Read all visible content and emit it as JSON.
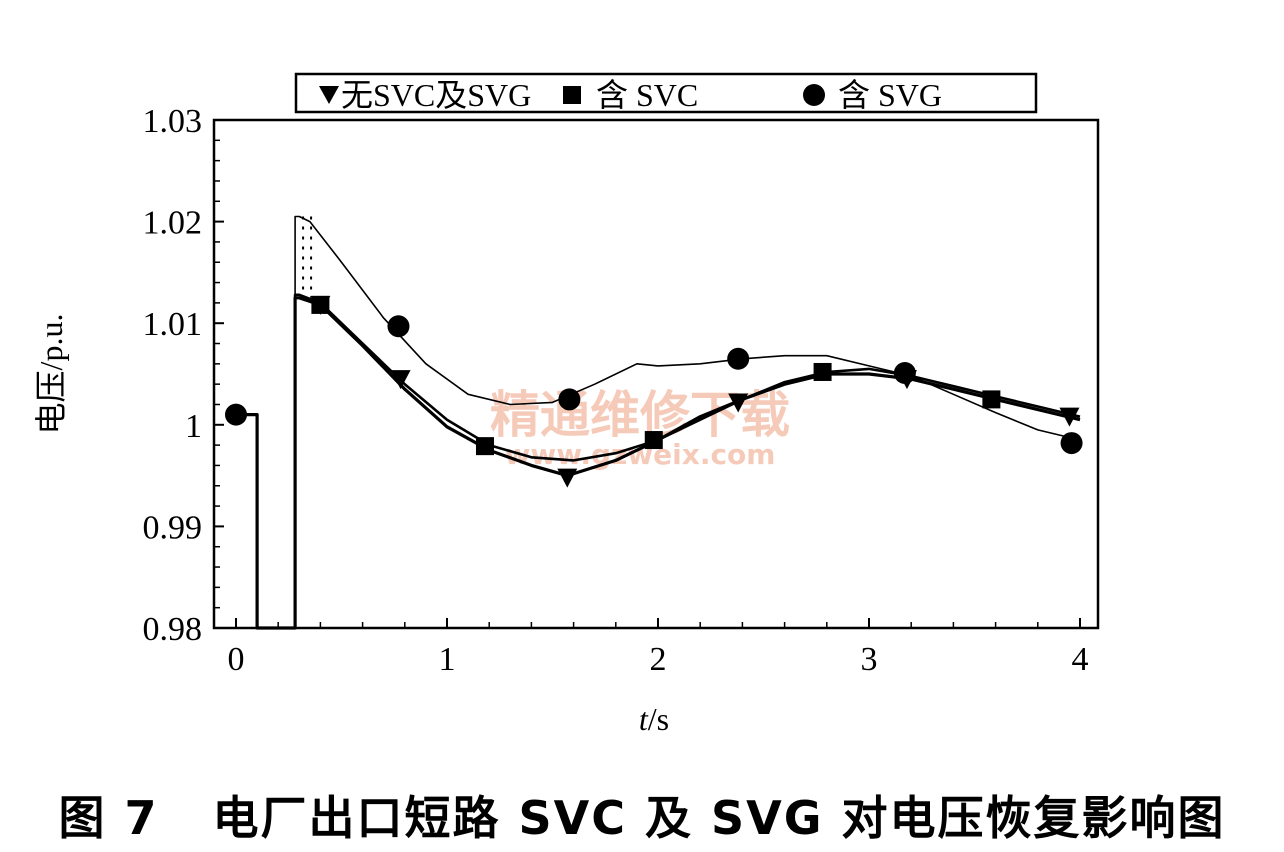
{
  "caption": "图 7   电厂出口短路 SVC 及 SVG 对电压恢复影响图",
  "watermark": {
    "text": "精通维修下载",
    "url": "www.gzweix.com"
  },
  "chart_data": {
    "type": "line",
    "xlabel_italic": "t",
    "xlabel_unit": "/s",
    "ylabel": "电压/p.u.",
    "xlim": [
      0,
      4
    ],
    "ylim": [
      0.98,
      1.03
    ],
    "xticks": [
      "0",
      "1",
      "2",
      "3",
      "4"
    ],
    "yticks": [
      "0.98",
      "0.99",
      "1",
      "1.01",
      "1.02",
      "1.03"
    ],
    "legend_position": "top",
    "series": [
      {
        "name": "无SVC及SVG",
        "marker": "triangle-down",
        "x": [
          0,
          0.1,
          0.1,
          0.28,
          0.28,
          0.3,
          0.4,
          0.6,
          0.8,
          1.0,
          1.2,
          1.4,
          1.57,
          1.8,
          2.0,
          2.2,
          2.4,
          2.6,
          2.8,
          3.0,
          3.2,
          3.4,
          3.6,
          3.8,
          4.0
        ],
        "y": [
          1.001,
          1.001,
          0.98,
          0.98,
          1.0125,
          1.0125,
          1.0118,
          1.0078,
          1.0035,
          0.9998,
          0.9975,
          0.996,
          0.995,
          0.9965,
          0.9985,
          1.0008,
          1.0025,
          1.004,
          1.005,
          1.005,
          1.0045,
          1.0035,
          1.0025,
          1.0015,
          1.0005
        ],
        "marker_x": [
          0.4,
          0.78,
          1.57,
          2.38,
          3.18,
          3.95
        ],
        "marker_y": [
          1.0118,
          1.0045,
          0.9948,
          1.0022,
          1.0045,
          1.0008
        ]
      },
      {
        "name": "含 SVC",
        "marker": "square",
        "x": [
          0,
          0.1,
          0.1,
          0.28,
          0.28,
          0.3,
          0.4,
          0.6,
          0.8,
          1.0,
          1.2,
          1.4,
          1.6,
          1.8,
          2.0,
          2.2,
          2.4,
          2.6,
          2.8,
          3.0,
          3.2,
          3.4,
          3.6,
          3.8,
          4.0
        ],
        "y": [
          1.001,
          1.001,
          0.98,
          0.98,
          1.0128,
          1.0128,
          1.012,
          1.008,
          1.004,
          1.0005,
          0.998,
          0.9968,
          0.9965,
          0.9972,
          0.9985,
          1.0005,
          1.0025,
          1.0042,
          1.0052,
          1.0055,
          1.0048,
          1.0038,
          1.0028,
          1.0018,
          1.0008
        ],
        "marker_x": [
          0.4,
          1.18,
          1.98,
          2.78,
          3.58
        ],
        "marker_y": [
          1.0118,
          0.9979,
          0.9985,
          1.0052,
          1.0025
        ]
      },
      {
        "name": "含 SVG",
        "marker": "circle",
        "x": [
          0,
          0.1,
          0.1,
          0.28,
          0.28,
          0.3,
          0.35,
          0.5,
          0.7,
          0.9,
          1.1,
          1.3,
          1.5,
          1.7,
          1.9,
          2.0,
          2.2,
          2.4,
          2.6,
          2.8,
          3.0,
          3.2,
          3.4,
          3.6,
          3.8,
          4.0
        ],
        "y": [
          1.001,
          1.001,
          0.98,
          0.98,
          1.0205,
          1.0205,
          1.02,
          1.016,
          1.0105,
          1.006,
          1.003,
          1.002,
          1.0022,
          1.004,
          1.006,
          1.0058,
          1.006,
          1.0065,
          1.0068,
          1.0068,
          1.0058,
          1.0048,
          1.003,
          1.0012,
          0.9995,
          0.9985
        ],
        "marker_x": [
          0.0,
          0.77,
          1.58,
          2.38,
          3.17,
          3.96
        ],
        "marker_y": [
          1.001,
          1.0097,
          1.0025,
          1.0065,
          1.0051,
          0.9982
        ]
      }
    ]
  }
}
